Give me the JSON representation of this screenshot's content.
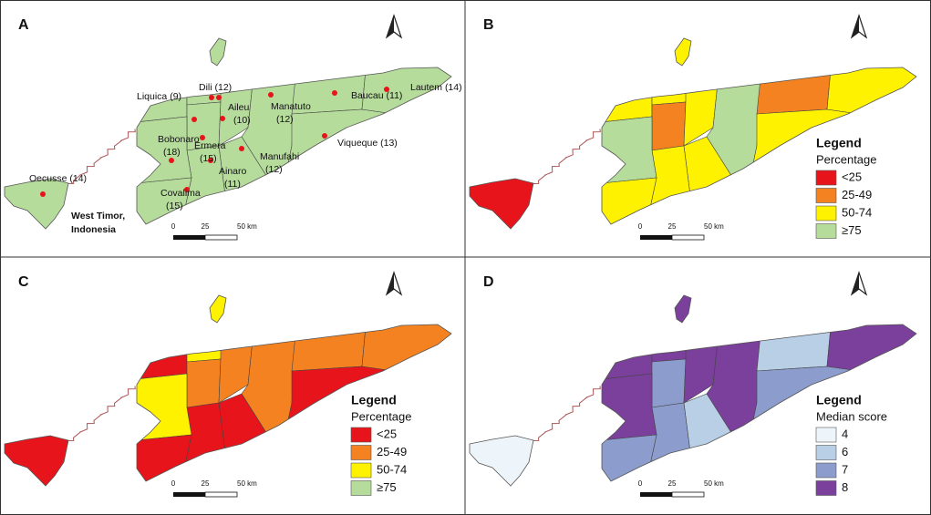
{
  "panels": [
    {
      "letter": "A",
      "labels": [
        [
          "Liquica (9)"
        ],
        [
          "Dili (12)"
        ],
        [
          "Ermera",
          "(15)"
        ],
        [
          "Aileu",
          "(10)"
        ],
        [
          "Manatuto",
          "(12)"
        ],
        [
          "Manufahi",
          "(12)"
        ],
        [
          "Ainaro",
          "(11)"
        ],
        [
          "Bobonaro",
          "(18)"
        ],
        [
          "Covalima",
          "(15)"
        ],
        [
          "Baucau (11)"
        ],
        [
          "Viqueque (13)"
        ],
        [
          "Lautem (14)"
        ],
        [
          "Oecusse (14)"
        ]
      ],
      "region_note": [
        "West Timor,",
        "Indonesia"
      ],
      "fills": [
        "#b5dc9b",
        "#b5dc9b",
        "#b5dc9b",
        "#b5dc9b",
        "#b5dc9b",
        "#b5dc9b",
        "#b5dc9b",
        "#b5dc9b",
        "#b5dc9b",
        "#b5dc9b",
        "#b5dc9b",
        "#b5dc9b",
        "#b5dc9b",
        "#b5dc9b"
      ],
      "scale": [
        "0",
        "25",
        "50 km"
      ]
    },
    {
      "letter": "B",
      "fills": [
        "#fff200",
        "#fff200",
        "#f58220",
        "#fff200",
        "#b5dc9b",
        "#fff200",
        "#fff200",
        "#b5dc9b",
        "#fff200",
        "#f58220",
        "#fff200",
        "#fff200",
        "#e8141b",
        "#fff200"
      ],
      "scale": [
        "0",
        "25",
        "50 km"
      ],
      "legend": {
        "title": "Legend",
        "subtitle": "Percentage",
        "items": [
          {
            "label": "<25",
            "color": "#e8141b"
          },
          {
            "label": "25-49",
            "color": "#f58220"
          },
          {
            "label": "50-74",
            "color": "#fff200"
          },
          {
            "label": "≥75",
            "color": "#b5dc9b"
          }
        ]
      }
    },
    {
      "letter": "C",
      "fills": [
        "#e8141b",
        "#fff200",
        "#f58220",
        "#f58220",
        "#f58220",
        "#e8141b",
        "#e8141b",
        "#fff200",
        "#e8141b",
        "#f58220",
        "#e8141b",
        "#f58220",
        "#e8141b",
        "#fff200"
      ],
      "scale": [
        "0",
        "25",
        "50 km"
      ],
      "legend": {
        "title": "Legend",
        "subtitle": "Percentage",
        "items": [
          {
            "label": "<25",
            "color": "#e8141b"
          },
          {
            "label": "25-49",
            "color": "#f58220"
          },
          {
            "label": "50-74",
            "color": "#fff200"
          },
          {
            "label": "≥75",
            "color": "#b5dc9b"
          }
        ]
      }
    },
    {
      "letter": "D",
      "fills": [
        "#7b3f9c",
        "#7b3f9c",
        "#8c9ccc",
        "#7b3f9c",
        "#7b3f9c",
        "#b8cfe6",
        "#8c9ccc",
        "#7b3f9c",
        "#8c9ccc",
        "#b8cfe6",
        "#8c9ccc",
        "#7b3f9c",
        "#eef5fa",
        "#7b3f9c"
      ],
      "scale": [
        "0",
        "25",
        "50 km"
      ],
      "legend": {
        "title": "Legend",
        "subtitle": "Median score",
        "items": [
          {
            "label": "4",
            "color": "#eef5fa"
          },
          {
            "label": "6",
            "color": "#b8cfe6"
          },
          {
            "label": "7",
            "color": "#8c9ccc"
          },
          {
            "label": "8",
            "color": "#7b3f9c"
          }
        ]
      }
    }
  ]
}
